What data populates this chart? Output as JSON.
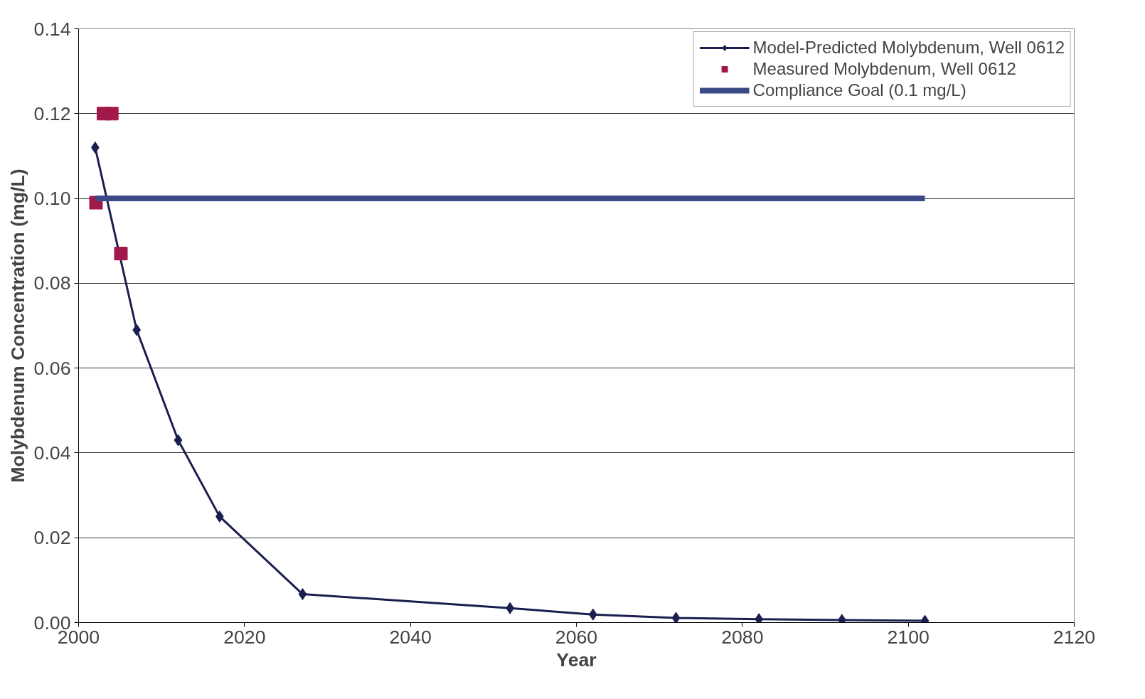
{
  "chart_data": {
    "type": "line",
    "xlabel": "Year",
    "ylabel": "Molybdenum Concentration (mg/L)",
    "xlim": [
      2000,
      2120
    ],
    "xticks": [
      2000,
      2020,
      2040,
      2060,
      2080,
      2100,
      2120
    ],
    "ylim": [
      0,
      0.14
    ],
    "yticks": [
      {
        "value": 0,
        "label": "0.00"
      },
      {
        "value": 0.02,
        "label": "0.02"
      },
      {
        "value": 0.04,
        "label": "0.04"
      },
      {
        "value": 0.06,
        "label": "0.06"
      },
      {
        "value": 0.08,
        "label": "0.08"
      },
      {
        "value": 0.1,
        "label": "0.10"
      },
      {
        "value": 0.12,
        "label": "0.12"
      },
      {
        "value": 0.14,
        "label": "0.14"
      }
    ],
    "grid": "y",
    "legend": "top right",
    "series": [
      {
        "name": "Model-Predicted Molybdenum, Well 0612",
        "marker": "diamond",
        "color": "#1a1f4f",
        "x": [
          2002,
          2007,
          2012,
          2017,
          2027,
          2052,
          2062,
          2072,
          2082,
          2092,
          2102
        ],
        "values": [
          0.112,
          0.069,
          0.043,
          0.025,
          0.0067,
          0.0034,
          0.0019,
          0.0011,
          0.0008,
          0.0006,
          0.0004
        ]
      },
      {
        "name": "Measured Molybdenum, Well 0612",
        "type": "scatter",
        "marker": "square",
        "color": "#a3184a",
        "x": [
          2002.1,
          2003,
          2004,
          2005.1
        ],
        "values": [
          0.099,
          0.12,
          0.12,
          0.087
        ]
      },
      {
        "name": "Compliance Goal (0.1 mg/L)",
        "type": "line",
        "marker": "none",
        "color": "#3b4a86",
        "x": [
          2002,
          2102
        ],
        "values": [
          0.1,
          0.1
        ]
      }
    ]
  }
}
